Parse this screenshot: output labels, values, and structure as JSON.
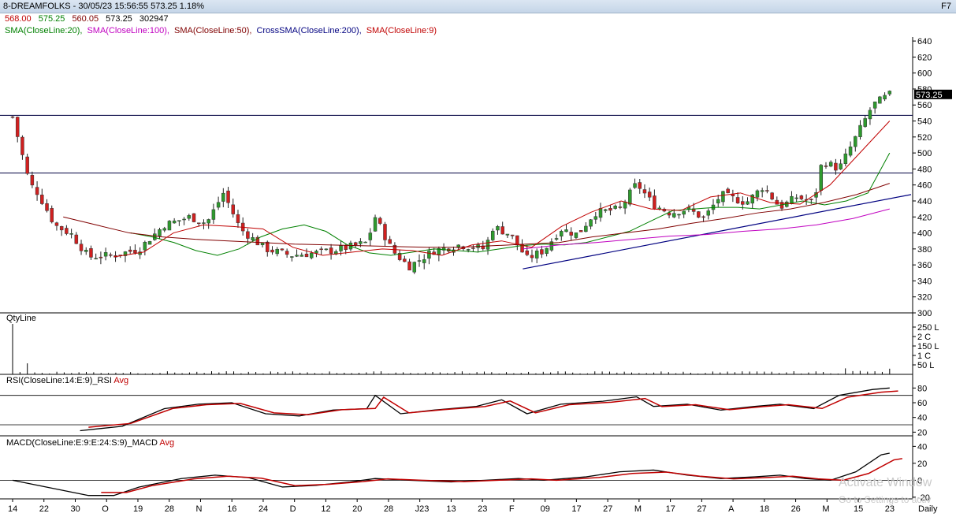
{
  "header": {
    "title": "8-DREAMFOLKS - 30/05/23 15:56:55 573.25 1.18%",
    "shortcut": "F7"
  },
  "ohlc": {
    "open": "568.00",
    "high": "575.25",
    "low": "560.05",
    "close": "573.25",
    "volume": "302947"
  },
  "indicators": [
    {
      "label": "SMA(CloseLine:20),",
      "color": "#008000"
    },
    {
      "label": "SMA(CloseLine:100),",
      "color": "#c000c0"
    },
    {
      "label": "SMA(CloseLine:50),",
      "color": "#800000"
    },
    {
      "label": "CrossSMA(CloseLine:200),",
      "color": "#000080"
    },
    {
      "label": "SMA(CloseLine:9)",
      "color": "#c00000"
    }
  ],
  "panes": {
    "qty": {
      "label": "QtyLine",
      "ticks": [
        "250 L",
        "2 C",
        "150 L",
        "1 C",
        "50 L"
      ]
    },
    "rsi": {
      "label": "RSI(CloseLine:14:E:9)_RSI",
      "avg": "Avg",
      "ticks": [
        "80",
        "60",
        "40",
        "20"
      ]
    },
    "macd": {
      "label": "MACD(CloseLine:E:9:E:24:S:9)_MACD",
      "avg": "Avg",
      "ticks": [
        "40",
        "20",
        "0",
        "-20"
      ]
    }
  },
  "price_label": "573.25",
  "period": "Daily",
  "watermark": {
    "line1": "Activate Window",
    "line2": "Go to Settings to activ"
  },
  "chart_data": {
    "type": "candlestick",
    "y_ticks": [
      300,
      320,
      340,
      360,
      380,
      400,
      420,
      440,
      460,
      480,
      500,
      520,
      540,
      560,
      580,
      600,
      620,
      640
    ],
    "ylim": [
      300,
      645
    ],
    "x_labels": [
      "14",
      "22",
      "30",
      "O",
      "19",
      "28",
      "N",
      "16",
      "24",
      "D",
      "12",
      "20",
      "28",
      "J23",
      "13",
      "23",
      "F",
      "09",
      "17",
      "27",
      "M",
      "17",
      "27",
      "A",
      "18",
      "26",
      "M",
      "15",
      "23"
    ],
    "horizontal_lines": [
      547,
      475
    ],
    "trendlines": [
      {
        "from_index": 0.605,
        "from_value": 355,
        "to_index": 1.0,
        "to_value": 448
      }
    ],
    "closing_trend": [
      {
        "i": 0.0,
        "v": 545
      },
      {
        "i": 0.02,
        "v": 462
      },
      {
        "i": 0.03,
        "v": 450
      },
      {
        "i": 0.05,
        "v": 410
      },
      {
        "i": 0.07,
        "v": 398
      },
      {
        "i": 0.09,
        "v": 370
      },
      {
        "i": 0.12,
        "v": 372
      },
      {
        "i": 0.15,
        "v": 380
      },
      {
        "i": 0.18,
        "v": 410
      },
      {
        "i": 0.21,
        "v": 420
      },
      {
        "i": 0.23,
        "v": 412
      },
      {
        "i": 0.25,
        "v": 450
      },
      {
        "i": 0.27,
        "v": 405
      },
      {
        "i": 0.3,
        "v": 380
      },
      {
        "i": 0.33,
        "v": 372
      },
      {
        "i": 0.36,
        "v": 375
      },
      {
        "i": 0.39,
        "v": 380
      },
      {
        "i": 0.42,
        "v": 388
      },
      {
        "i": 0.43,
        "v": 420
      },
      {
        "i": 0.45,
        "v": 378
      },
      {
        "i": 0.47,
        "v": 358
      },
      {
        "i": 0.5,
        "v": 378
      },
      {
        "i": 0.53,
        "v": 385
      },
      {
        "i": 0.56,
        "v": 380
      },
      {
        "i": 0.57,
        "v": 408
      },
      {
        "i": 0.59,
        "v": 398
      },
      {
        "i": 0.61,
        "v": 368
      },
      {
        "i": 0.63,
        "v": 378
      },
      {
        "i": 0.65,
        "v": 405
      },
      {
        "i": 0.67,
        "v": 398
      },
      {
        "i": 0.69,
        "v": 425
      },
      {
        "i": 0.72,
        "v": 430
      },
      {
        "i": 0.74,
        "v": 462
      },
      {
        "i": 0.76,
        "v": 435
      },
      {
        "i": 0.78,
        "v": 425
      },
      {
        "i": 0.8,
        "v": 430
      },
      {
        "i": 0.82,
        "v": 418
      },
      {
        "i": 0.84,
        "v": 448
      },
      {
        "i": 0.87,
        "v": 438
      },
      {
        "i": 0.89,
        "v": 458
      },
      {
        "i": 0.91,
        "v": 432
      },
      {
        "i": 0.93,
        "v": 445
      },
      {
        "i": 0.95,
        "v": 438
      },
      {
        "i": 0.96,
        "v": 490
      },
      {
        "i": 0.98,
        "v": 480
      },
      {
        "i": 1.0,
        "v": 520
      },
      {
        "i": 1.02,
        "v": 560
      },
      {
        "i": 1.04,
        "v": 573
      }
    ],
    "series": [
      {
        "name": "SMA(CloseLine:20)",
        "color": "#008000",
        "values": [
          400,
          395,
          388,
          378,
          372,
          380,
          395,
          405,
          410,
          402,
          385,
          375,
          372,
          376,
          380,
          378,
          376,
          380,
          384,
          386,
          385,
          388,
          395,
          402,
          415,
          428,
          430,
          432,
          432,
          430,
          435,
          440,
          435,
          440,
          450,
          500
        ]
      },
      {
        "name": "SMA(CloseLine:100)",
        "color": "#c000c0",
        "values": [
          380,
          385,
          388,
          392,
          396,
          398,
          402,
          405,
          410,
          418,
          430
        ]
      },
      {
        "name": "SMA(CloseLine:50)",
        "color": "#800000",
        "values": [
          420,
          410,
          400,
          395,
          392,
          390,
          388,
          386,
          385,
          384,
          383,
          382,
          382,
          384,
          386,
          388,
          395,
          400,
          405,
          412,
          418,
          425,
          430,
          438,
          448,
          462
        ]
      },
      {
        "name": "SMA(CloseLine:9)",
        "color": "#c00000",
        "values": [
          370,
          376,
          400,
          410,
          408,
          405,
          382,
          372,
          376,
          380,
          378,
          372,
          385,
          390,
          382,
          408,
          426,
          440,
          430,
          428,
          445,
          450,
          438,
          436,
          460,
          500,
          540
        ]
      }
    ],
    "rsi": {
      "ylim": [
        15,
        90
      ],
      "levels": [
        70,
        30
      ]
    },
    "macd": {
      "ylim": [
        -22,
        45
      ],
      "levels": [
        0
      ]
    }
  }
}
